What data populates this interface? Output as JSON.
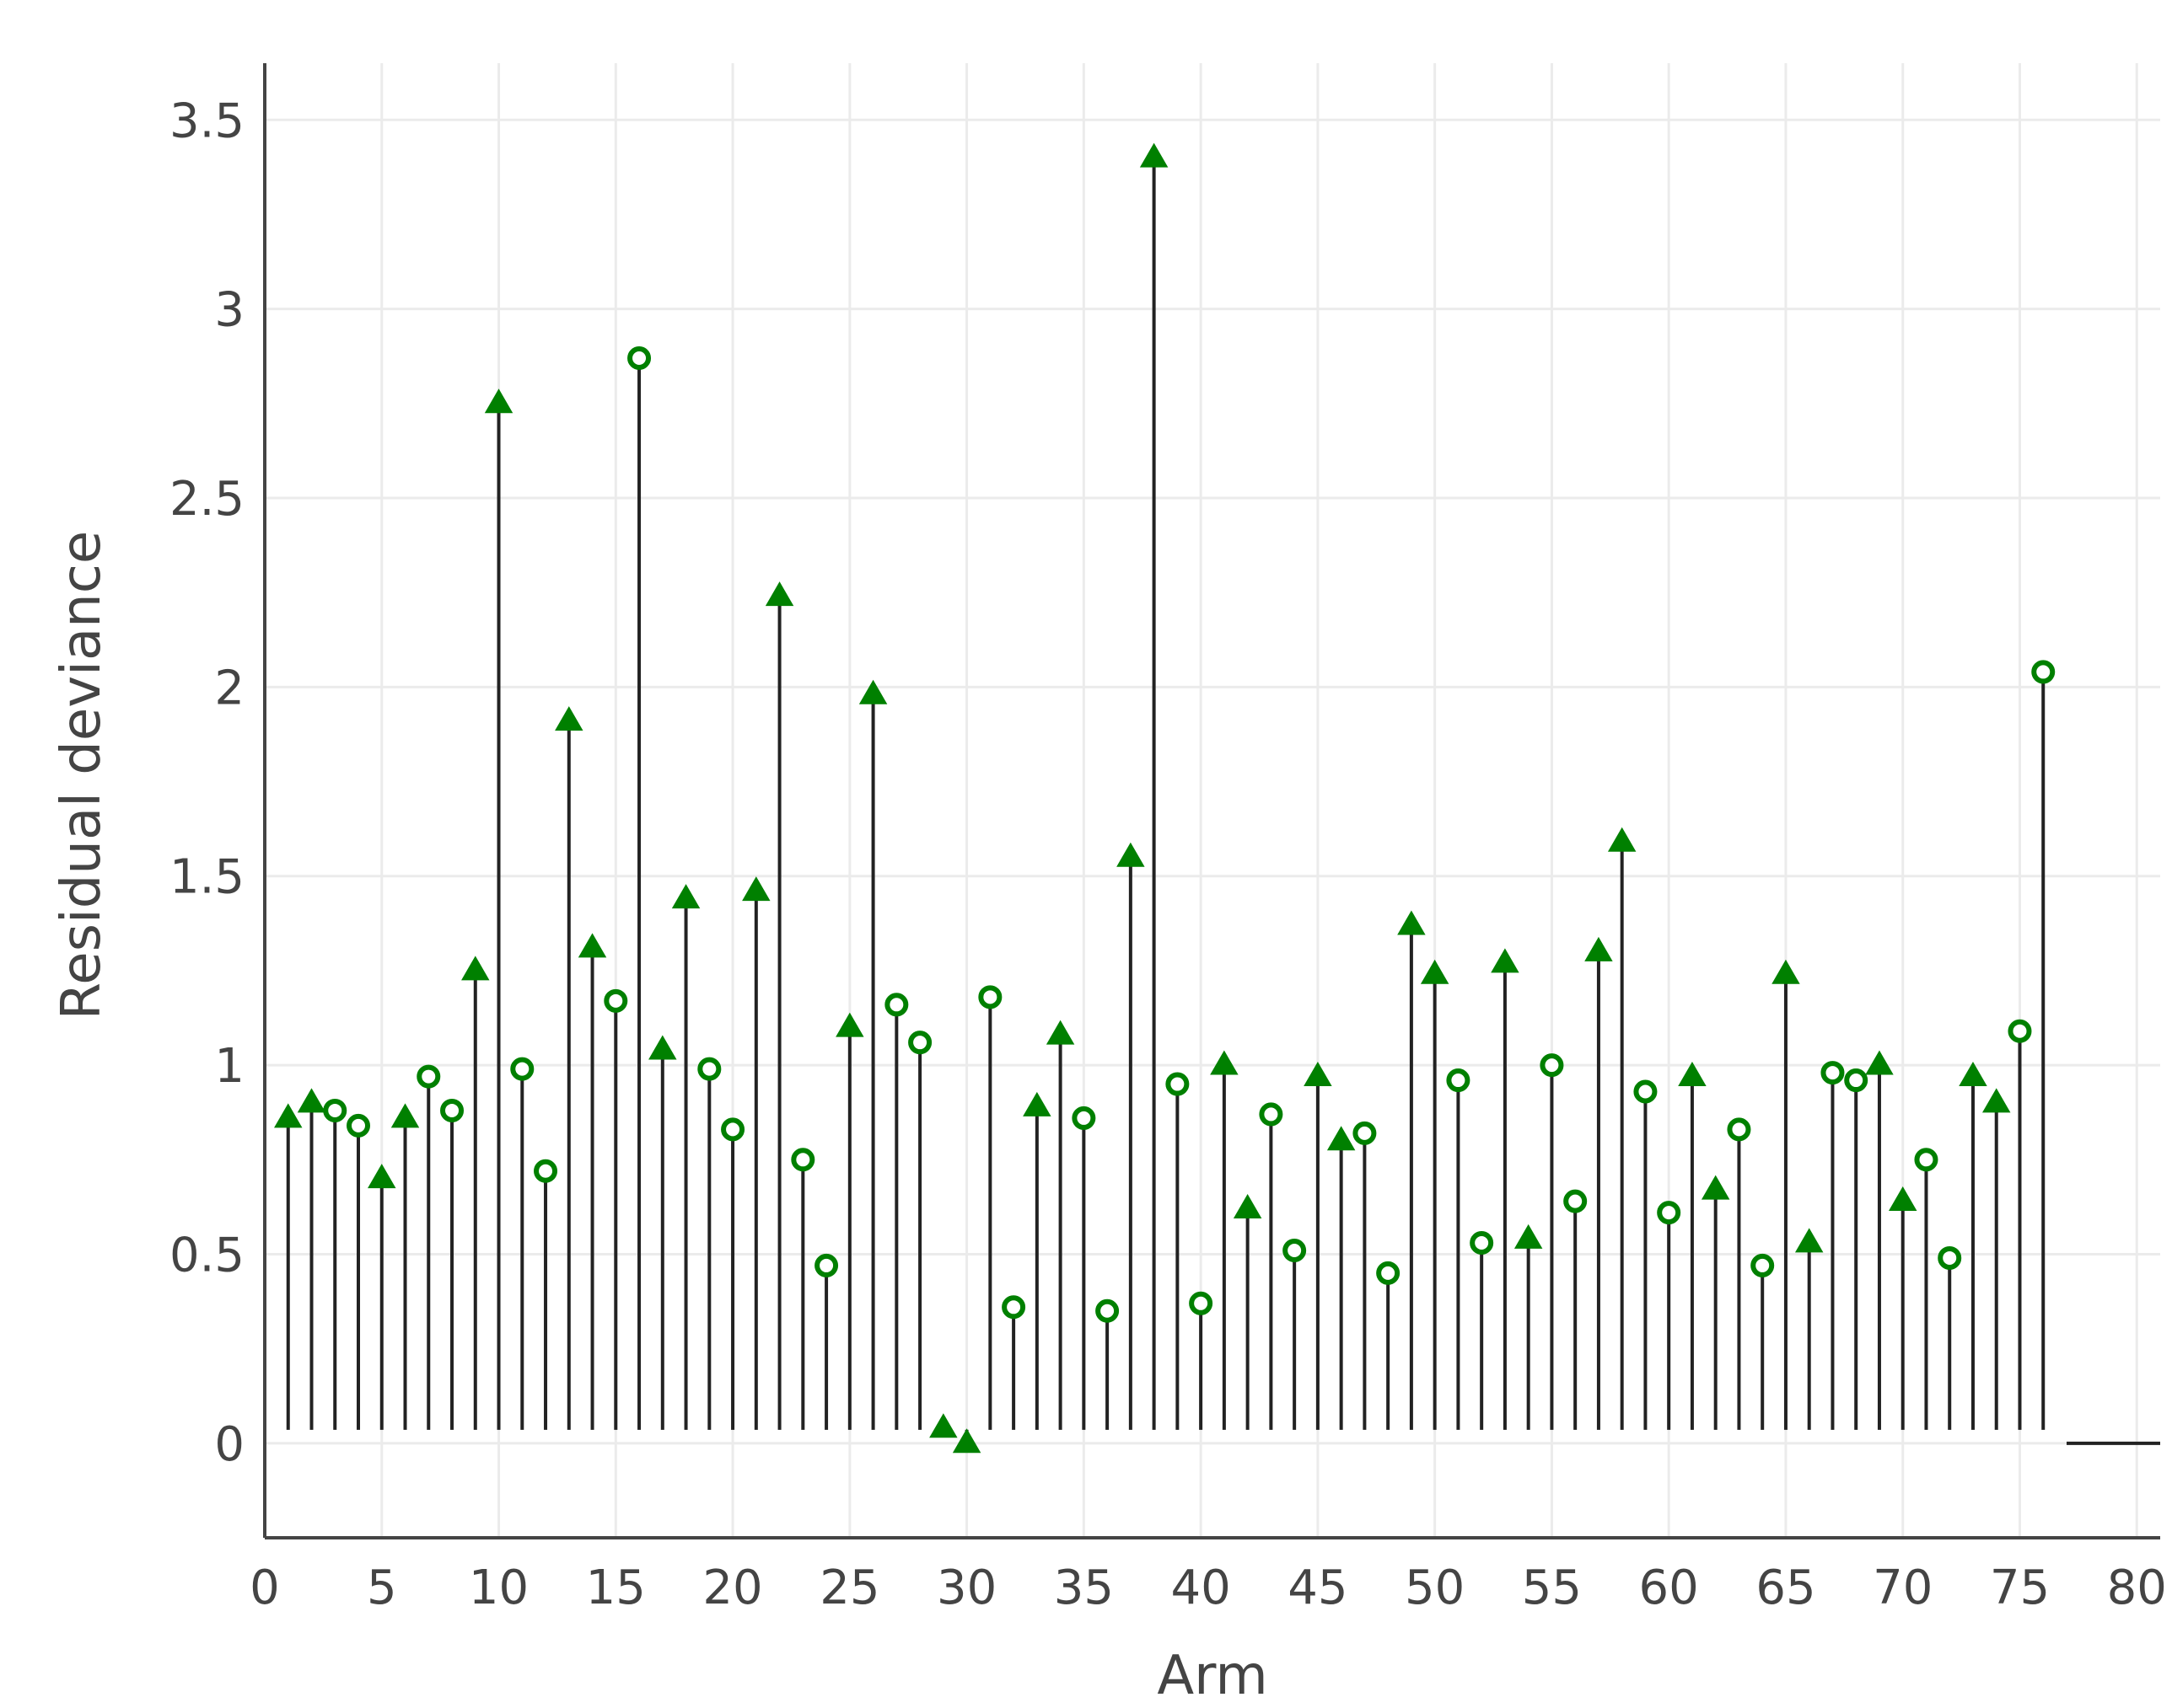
{
  "chart_data": {
    "type": "scatter",
    "title": "",
    "xlabel": "Arm",
    "ylabel": "Residual deviance",
    "xlim": [
      0,
      81
    ],
    "ylim": [
      -0.25,
      3.65
    ],
    "xticks": [
      "0",
      "5",
      "10",
      "15",
      "20",
      "25",
      "30",
      "35",
      "40",
      "45",
      "50",
      "55",
      "60",
      "65",
      "70",
      "75",
      "80"
    ],
    "yticks": [
      "0",
      "0.5",
      "1",
      "1.5",
      "2",
      "2.5",
      "3",
      "3.5"
    ],
    "grid": true,
    "legend": "none",
    "colors": {
      "marker": "#008000",
      "stem": "#222222",
      "grid": "#ebebeb",
      "axis": "#444444"
    },
    "markers": {
      "triangle": "triangle-up",
      "circle": "circle-open"
    },
    "series": [
      {
        "x": [
          1,
          2,
          3,
          4,
          5,
          6,
          7,
          8,
          9,
          10,
          11,
          12,
          13,
          14,
          15,
          16,
          17,
          18,
          19,
          20,
          21,
          22,
          23,
          24,
          25,
          26,
          27,
          28,
          29,
          30,
          31,
          32,
          33,
          34,
          35,
          36,
          37,
          38,
          39,
          40,
          41,
          42,
          43,
          44,
          45,
          46,
          47,
          48,
          49,
          50,
          51,
          52,
          53,
          54,
          55,
          56,
          57,
          58,
          59,
          60,
          61,
          62,
          63,
          64,
          65,
          66,
          67,
          68,
          69,
          70,
          71,
          72,
          73,
          74,
          75,
          76
        ],
        "y": [
          0.86,
          0.9,
          0.88,
          0.84,
          0.7,
          0.86,
          0.97,
          0.88,
          1.25,
          2.75,
          0.99,
          0.72,
          1.91,
          1.31,
          1.17,
          2.87,
          1.04,
          1.44,
          0.99,
          0.83,
          1.46,
          2.24,
          0.75,
          0.47,
          1.1,
          1.98,
          1.16,
          1.06,
          0.04,
          0.0,
          1.18,
          0.36,
          0.89,
          1.08,
          0.86,
          0.35,
          1.55,
          3.4,
          0.95,
          0.37,
          1.0,
          0.62,
          0.87,
          0.51,
          0.97,
          0.8,
          0.82,
          0.45,
          1.37,
          1.24,
          0.96,
          0.53,
          1.27,
          0.54,
          1.0,
          0.64,
          1.3,
          1.59,
          0.93,
          0.61,
          0.97,
          0.67,
          0.83,
          0.47,
          1.24,
          0.53,
          0.98,
          0.96,
          1.0,
          0.64,
          0.75,
          0.49,
          0.97,
          0.9,
          1.09,
          2.04
        ],
        "marker": [
          "triangle",
          "triangle",
          "circle",
          "circle",
          "triangle",
          "triangle",
          "circle",
          "circle",
          "triangle",
          "triangle",
          "circle",
          "circle",
          "triangle",
          "triangle",
          "circle",
          "circle",
          "triangle",
          "triangle",
          "circle",
          "circle",
          "triangle",
          "triangle",
          "circle",
          "circle",
          "triangle",
          "triangle",
          "circle",
          "circle",
          "triangle",
          "triangle",
          "circle",
          "circle",
          "triangle",
          "triangle",
          "circle",
          "circle",
          "triangle",
          "triangle",
          "circle",
          "circle",
          "triangle",
          "triangle",
          "circle",
          "circle",
          "triangle",
          "triangle",
          "circle",
          "circle",
          "triangle",
          "triangle",
          "circle",
          "circle",
          "triangle",
          "triangle",
          "circle",
          "circle",
          "triangle",
          "triangle",
          "circle",
          "circle",
          "triangle",
          "triangle",
          "circle",
          "circle",
          "triangle",
          "triangle",
          "circle",
          "circle",
          "triangle",
          "triangle",
          "circle",
          "circle",
          "triangle",
          "triangle",
          "circle",
          "circle"
        ]
      }
    ],
    "reference_line": {
      "x": [
        77,
        81
      ],
      "y": [
        0,
        0
      ]
    }
  }
}
